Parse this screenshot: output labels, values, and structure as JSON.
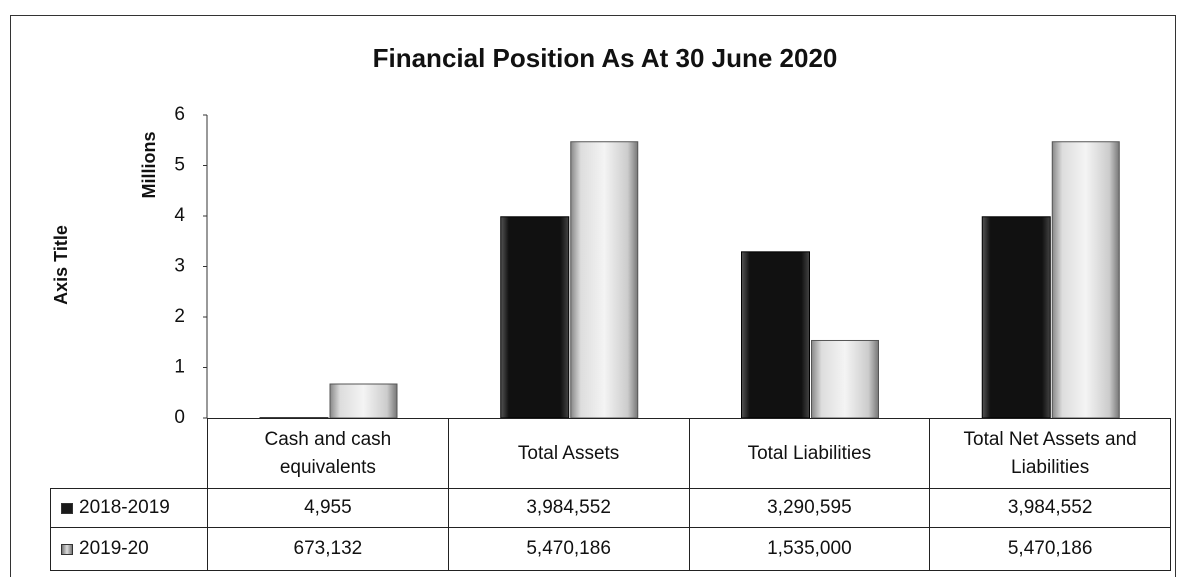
{
  "chart_data": {
    "type": "bar",
    "title": "Financial Position As At 30 June 2020",
    "y_axis_title": "Axis Title",
    "y_display_unit": "Millions",
    "categories": [
      "Cash and cash equivalents",
      "Total Assets",
      "Total Liabilities",
      "Total Net Assets and Liabilities"
    ],
    "series": [
      {
        "name": "2018-2019",
        "color": "#1a1a1a",
        "values": [
          4955,
          3984552,
          3290595,
          3984552
        ],
        "value_labels": [
          "4,955",
          "3,984,552",
          "3,290,595",
          "3,984,552"
        ]
      },
      {
        "name": "2019-20",
        "color": "#b8b8b8",
        "values": [
          673132,
          5470186,
          1535000,
          5470186
        ],
        "value_labels": [
          "673,132",
          "5,470,186",
          "1,535,000",
          "5,470,186"
        ]
      }
    ],
    "ylim": [
      0,
      6000000
    ],
    "yticks": [
      0,
      {
        "value": 1000000,
        "label": "1"
      },
      {
        "value": 2000000,
        "label": "2"
      },
      {
        "value": 3000000,
        "label": "3"
      },
      {
        "value": 4000000,
        "label": "4"
      },
      {
        "value": 5000000,
        "label": "5"
      },
      {
        "value": 6000000,
        "label": "6"
      }
    ],
    "grid": false,
    "legend": "table"
  }
}
